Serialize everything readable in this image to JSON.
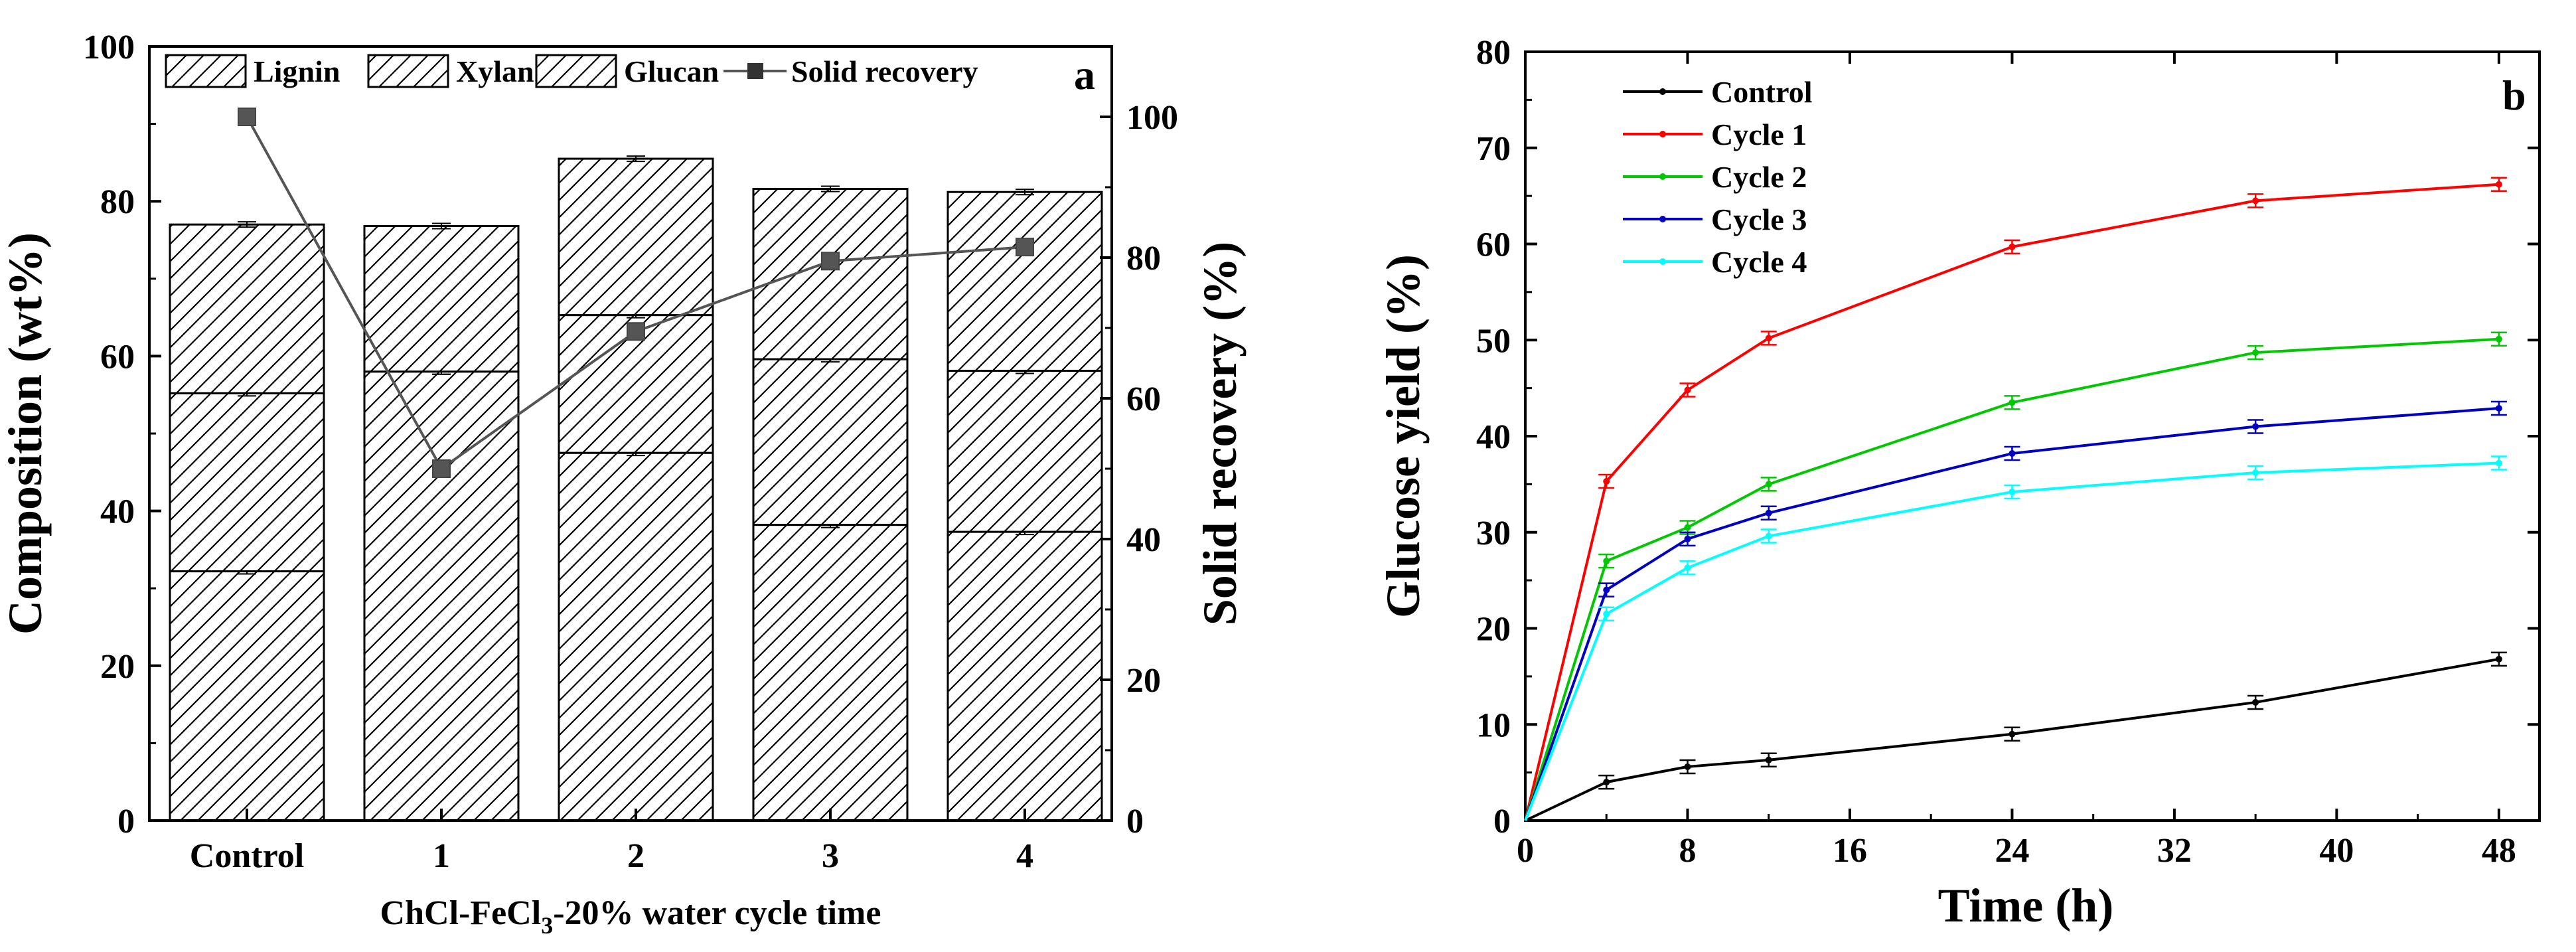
{
  "chart_data": [
    {
      "type": "bar",
      "panel_label": "a",
      "stacked": true,
      "categories": [
        "Control",
        "1",
        "2",
        "3",
        "4"
      ],
      "xlabel": "ChCl-FeCl",
      "xlabel_sub": "3",
      "xlabel_rest": "-20% water  cycle time",
      "ylabel": "Composition (wt%)",
      "ylim": [
        0,
        100
      ],
      "yticks": [
        "0",
        "20",
        "40",
        "60",
        "80",
        "100"
      ],
      "y2label": "Solid recovery (%)",
      "y2lim": [
        0,
        110
      ],
      "y2ticks": [
        "0",
        "20",
        "40",
        "60",
        "80",
        "100"
      ],
      "legend_position": "top",
      "series": [
        {
          "name": "Glucan",
          "values": [
            32.2,
            58.0,
            47.5,
            38.2,
            37.3
          ]
        },
        {
          "name": "Xylan",
          "values": [
            23.0,
            0.0,
            17.8,
            21.4,
            20.8
          ]
        },
        {
          "name": "Lignin",
          "values": [
            21.8,
            18.8,
            20.2,
            22.0,
            23.1
          ]
        }
      ],
      "legend_entries": [
        "Lignin",
        "Xylan",
        "Glucan",
        "Solid recovery"
      ],
      "line_series": {
        "name": "Solid recovery",
        "axis": "right",
        "values": [
          100,
          50,
          69.5,
          79.5,
          81.5
        ]
      }
    },
    {
      "type": "line",
      "panel_label": "b",
      "xlabel": "Time (h)",
      "ylabel": "Glucose yield (%)",
      "xlim": [
        0,
        50
      ],
      "ylim": [
        0,
        80
      ],
      "xticks": [
        "0",
        "8",
        "16",
        "24",
        "32",
        "40",
        "48"
      ],
      "yticks": [
        "0",
        "10",
        "20",
        "30",
        "40",
        "50",
        "60",
        "70",
        "80"
      ],
      "x": [
        0,
        4,
        8,
        12,
        24,
        36,
        48
      ],
      "legend_position": "top-left",
      "series": [
        {
          "name": "Control",
          "color": "#000000",
          "values": [
            0,
            4.0,
            5.6,
            6.3,
            9.0,
            12.3,
            16.8
          ]
        },
        {
          "name": "Cycle 1",
          "color": "#ff0000",
          "values": [
            0,
            35.3,
            44.8,
            50.2,
            59.7,
            64.5,
            66.2
          ]
        },
        {
          "name": "Cycle 2",
          "color": "#00c800",
          "values": [
            0,
            27.0,
            30.5,
            35.0,
            43.5,
            48.7,
            50.1
          ]
        },
        {
          "name": "Cycle 3",
          "color": "#0000c0",
          "values": [
            0,
            24.0,
            29.3,
            32.0,
            38.2,
            41.0,
            42.9
          ]
        },
        {
          "name": "Cycle 4",
          "color": "#00ffff",
          "values": [
            0,
            21.5,
            26.3,
            29.6,
            34.2,
            36.2,
            37.2
          ]
        }
      ]
    }
  ]
}
